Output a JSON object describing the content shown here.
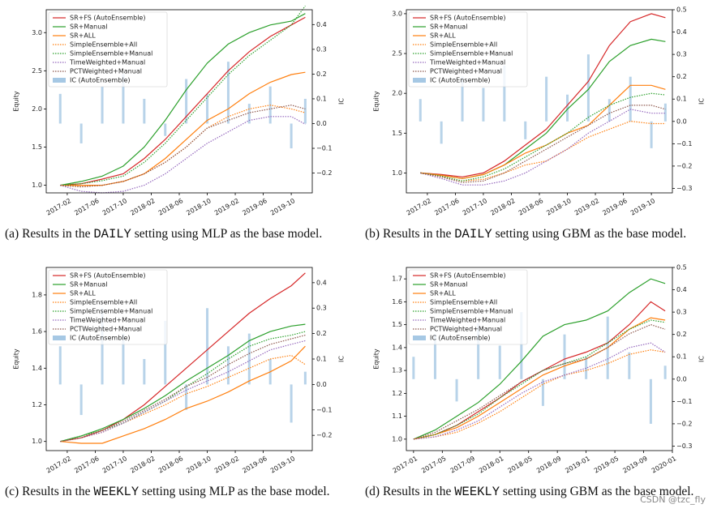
{
  "watermark": "CSDN @tzc_fly",
  "chart_data": [
    {
      "type": "line",
      "legend": "upper left",
      "ylabel": "Equity",
      "y2label": "IC",
      "caption": {
        "prefix": "(a) Results in the ",
        "setting": "DAILY",
        "suffix": " setting using MLP as the base model."
      },
      "x": [
        "2017-01",
        "2017-04",
        "2017-07",
        "2017-10",
        "2018-01",
        "2018-04",
        "2018-07",
        "2018-10",
        "2019-01",
        "2019-04",
        "2019-07",
        "2019-10",
        "2019-12"
      ],
      "xlim": [
        "2016-11",
        "2020-01"
      ],
      "xticks": [
        "2017-02",
        "2017-06",
        "2017-10",
        "2018-02",
        "2018-06",
        "2018-10",
        "2019-02",
        "2019-06",
        "2019-10"
      ],
      "ylim": [
        0.9,
        3.3
      ],
      "yticks": [
        {
          "value": 1,
          "label": "1.0"
        },
        1.5,
        {
          "value": 2,
          "label": "2.0"
        },
        2.5,
        {
          "value": 3,
          "label": "3.0"
        }
      ],
      "y2lim": [
        -0.28,
        0.46
      ],
      "y2ticks": [
        {
          "value": -0.2,
          "label": "−0.2"
        },
        {
          "value": -0.1,
          "label": "−0.1"
        },
        {
          "value": 0,
          "label": "0.0"
        },
        0.1,
        0.2,
        0.3,
        0.4
      ],
      "series": [
        {
          "name": "SR+FS (AutoEnsemble)",
          "color": "#d62728",
          "style": "solid",
          "values": [
            1.0,
            1.02,
            1.08,
            1.15,
            1.35,
            1.6,
            1.9,
            2.2,
            2.5,
            2.75,
            2.95,
            3.1,
            3.2
          ]
        },
        {
          "name": "SR+Manual",
          "color": "#2ca02c",
          "style": "solid",
          "values": [
            1.0,
            1.05,
            1.12,
            1.25,
            1.5,
            1.85,
            2.25,
            2.6,
            2.85,
            3.0,
            3.1,
            3.15,
            3.25
          ]
        },
        {
          "name": "SR+ALL",
          "color": "#ff7f0e",
          "style": "solid",
          "values": [
            1.0,
            1.0,
            1.0,
            1.05,
            1.15,
            1.35,
            1.6,
            1.85,
            2.0,
            2.2,
            2.35,
            2.45,
            2.48
          ]
        },
        {
          "name": "SimpleEnsemble+All",
          "color": "#ff7f0e",
          "style": "dotted",
          "values": [
            1.0,
            0.98,
            1.0,
            1.05,
            1.15,
            1.3,
            1.5,
            1.75,
            1.9,
            2.0,
            2.05,
            2.0,
            1.95
          ]
        },
        {
          "name": "SimpleEnsemble+Manual",
          "color": "#2ca02c",
          "style": "dotted",
          "values": [
            1.0,
            1.02,
            1.06,
            1.12,
            1.3,
            1.55,
            1.85,
            2.15,
            2.45,
            2.7,
            2.9,
            3.1,
            3.35
          ]
        },
        {
          "name": "TimeWeighted+Manual",
          "color": "#9467bd",
          "style": "dotted",
          "values": [
            1.0,
            0.92,
            0.9,
            0.92,
            1.0,
            1.15,
            1.35,
            1.55,
            1.7,
            1.85,
            1.9,
            1.9,
            1.8
          ]
        },
        {
          "name": "PCTWeighted+Manual",
          "color": "#8c564b",
          "style": "dotted",
          "values": [
            1.0,
            0.98,
            1.0,
            1.05,
            1.15,
            1.3,
            1.5,
            1.75,
            1.85,
            1.95,
            2.0,
            2.05,
            2.0
          ]
        },
        {
          "name": "IC (AutoEnsemble)",
          "color": "#a6c8e4",
          "type": "bar",
          "axis": "y2",
          "values": [
            0.12,
            -0.08,
            0.15,
            0.2,
            0.1,
            -0.05,
            0.18,
            0.12,
            0.25,
            0.08,
            0.15,
            -0.1,
            0.1
          ]
        }
      ]
    },
    {
      "type": "line",
      "legend": "upper left",
      "ylabel": "Equity",
      "y2label": "IC",
      "caption": {
        "prefix": "(b) Results in the ",
        "setting": "DAILY",
        "suffix": " setting using GBM as the base model."
      },
      "x": [
        "2017-01",
        "2017-04",
        "2017-07",
        "2017-10",
        "2018-01",
        "2018-04",
        "2018-07",
        "2018-10",
        "2019-01",
        "2019-04",
        "2019-07",
        "2019-10",
        "2019-12"
      ],
      "xlim": [
        "2016-11",
        "2020-01"
      ],
      "xticks": [
        "2017-02",
        "2017-06",
        "2017-10",
        "2018-02",
        "2018-06",
        "2018-10",
        "2019-02",
        "2019-06",
        "2019-10"
      ],
      "ylim": [
        0.75,
        3.05
      ],
      "yticks": [
        {
          "value": 1,
          "label": "1.0"
        },
        1.5,
        {
          "value": 2,
          "label": "2.0"
        },
        2.5,
        {
          "value": 3,
          "label": "3.0"
        }
      ],
      "y2lim": [
        -0.32,
        0.5
      ],
      "y2ticks": [
        {
          "value": -0.3,
          "label": "−0.3"
        },
        {
          "value": -0.2,
          "label": "−0.2"
        },
        {
          "value": -0.1,
          "label": "−0.1"
        },
        {
          "value": 0,
          "label": "0.0"
        },
        0.1,
        0.2,
        0.3,
        0.4,
        0.5
      ],
      "series": [
        {
          "name": "SR+FS (AutoEnsemble)",
          "color": "#d62728",
          "style": "solid",
          "values": [
            1.0,
            0.98,
            0.95,
            1.0,
            1.15,
            1.35,
            1.55,
            1.85,
            2.15,
            2.6,
            2.9,
            3.0,
            2.95
          ]
        },
        {
          "name": "SR+Manual",
          "color": "#2ca02c",
          "style": "solid",
          "values": [
            1.0,
            0.97,
            0.93,
            0.98,
            1.1,
            1.3,
            1.5,
            1.8,
            2.05,
            2.4,
            2.6,
            2.68,
            2.65
          ]
        },
        {
          "name": "SR+ALL",
          "color": "#ff7f0e",
          "style": "solid",
          "values": [
            1.0,
            0.97,
            0.93,
            0.98,
            1.1,
            1.25,
            1.35,
            1.5,
            1.6,
            1.85,
            2.1,
            2.1,
            2.05
          ]
        },
        {
          "name": "SimpleEnsemble+All",
          "color": "#ff7f0e",
          "style": "dotted",
          "values": [
            1.0,
            0.95,
            0.9,
            0.92,
            1.0,
            1.1,
            1.15,
            1.3,
            1.45,
            1.55,
            1.65,
            1.62,
            1.62
          ]
        },
        {
          "name": "SimpleEnsemble+Manual",
          "color": "#2ca02c",
          "style": "dotted",
          "values": [
            1.0,
            0.96,
            0.9,
            0.95,
            1.05,
            1.2,
            1.35,
            1.5,
            1.7,
            1.85,
            1.95,
            2.0,
            1.98
          ]
        },
        {
          "name": "TimeWeighted+Manual",
          "color": "#9467bd",
          "style": "dotted",
          "values": [
            1.0,
            0.93,
            0.85,
            0.85,
            0.9,
            1.0,
            1.15,
            1.3,
            1.5,
            1.65,
            1.8,
            1.75,
            1.75
          ]
        },
        {
          "name": "PCTWeighted+Manual",
          "color": "#8c564b",
          "style": "dotted",
          "values": [
            1.0,
            0.95,
            0.88,
            0.9,
            1.0,
            1.15,
            1.3,
            1.45,
            1.6,
            1.75,
            1.85,
            1.85,
            1.8
          ]
        },
        {
          "name": "IC (AutoEnsemble)",
          "color": "#a6c8e4",
          "type": "bar",
          "axis": "y2",
          "values": [
            0.1,
            -0.1,
            0.2,
            0.15,
            0.25,
            -0.08,
            0.2,
            0.12,
            0.3,
            0.1,
            0.2,
            -0.12,
            0.08
          ]
        }
      ]
    },
    {
      "type": "line",
      "legend": "upper left",
      "ylabel": "Equity",
      "y2label": "IC",
      "caption": {
        "prefix": "(c) Results in the ",
        "setting": "WEEKLY",
        "suffix": " setting using MLP as the base model."
      },
      "x": [
        "2017-01",
        "2017-04",
        "2017-07",
        "2017-10",
        "2018-01",
        "2018-04",
        "2018-07",
        "2018-10",
        "2019-01",
        "2019-04",
        "2019-07",
        "2019-10",
        "2019-12"
      ],
      "xlim": [
        "2016-11",
        "2020-01"
      ],
      "xticks": [
        "2017-02",
        "2017-06",
        "2017-10",
        "2018-02",
        "2018-06",
        "2018-10",
        "2019-02",
        "2019-06",
        "2019-10"
      ],
      "ylim": [
        0.95,
        1.95
      ],
      "yticks": [
        {
          "value": 1,
          "label": "1.0"
        },
        1.2,
        1.4,
        1.6,
        1.8
      ],
      "y2lim": [
        -0.26,
        0.46
      ],
      "y2ticks": [
        {
          "value": -0.2,
          "label": "−0.2"
        },
        {
          "value": -0.1,
          "label": "−0.1"
        },
        {
          "value": 0,
          "label": "0.0"
        },
        0.1,
        0.2,
        0.3,
        0.4
      ],
      "series": [
        {
          "name": "SR+FS (AutoEnsemble)",
          "color": "#d62728",
          "style": "solid",
          "values": [
            1.0,
            1.02,
            1.06,
            1.12,
            1.2,
            1.3,
            1.4,
            1.5,
            1.6,
            1.7,
            1.78,
            1.85,
            1.92
          ]
        },
        {
          "name": "SR+Manual",
          "color": "#2ca02c",
          "style": "solid",
          "values": [
            1.0,
            1.03,
            1.07,
            1.12,
            1.18,
            1.25,
            1.33,
            1.4,
            1.47,
            1.55,
            1.6,
            1.63,
            1.64
          ]
        },
        {
          "name": "SR+ALL",
          "color": "#ff7f0e",
          "style": "solid",
          "values": [
            1.0,
            0.99,
            0.99,
            1.03,
            1.07,
            1.12,
            1.18,
            1.22,
            1.27,
            1.33,
            1.38,
            1.44,
            1.52
          ]
        },
        {
          "name": "SimpleEnsemble+All",
          "color": "#ff7f0e",
          "style": "dotted",
          "values": [
            1.0,
            1.02,
            1.05,
            1.1,
            1.15,
            1.2,
            1.26,
            1.3,
            1.35,
            1.4,
            1.45,
            1.47,
            1.42
          ]
        },
        {
          "name": "SimpleEnsemble+Manual",
          "color": "#2ca02c",
          "style": "dotted",
          "values": [
            1.0,
            1.03,
            1.06,
            1.1,
            1.16,
            1.22,
            1.3,
            1.37,
            1.45,
            1.52,
            1.56,
            1.58,
            1.6
          ]
        },
        {
          "name": "TimeWeighted+Manual",
          "color": "#9467bd",
          "style": "dotted",
          "values": [
            1.0,
            1.02,
            1.05,
            1.1,
            1.16,
            1.22,
            1.28,
            1.33,
            1.38,
            1.44,
            1.5,
            1.53,
            1.55
          ]
        },
        {
          "name": "PCTWeighted+Manual",
          "color": "#8c564b",
          "style": "dotted",
          "values": [
            1.0,
            1.02,
            1.06,
            1.11,
            1.17,
            1.23,
            1.3,
            1.35,
            1.42,
            1.48,
            1.53,
            1.56,
            1.58
          ]
        },
        {
          "name": "IC (AutoEnsemble)",
          "color": "#a6c8e4",
          "type": "bar",
          "axis": "y2",
          "values": [
            0.15,
            -0.12,
            0.3,
            0.2,
            0.1,
            0.25,
            -0.1,
            0.3,
            0.15,
            0.2,
            0.1,
            -0.15,
            0.05
          ]
        }
      ]
    },
    {
      "type": "line",
      "legend": "upper left",
      "ylabel": "Equity",
      "y2label": "IC",
      "caption": {
        "prefix": "(d) Results in the ",
        "setting": "WEEKLY",
        "suffix": " setting using GBM as the base model."
      },
      "x": [
        "2017-01",
        "2017-04",
        "2017-07",
        "2017-10",
        "2018-01",
        "2018-04",
        "2018-07",
        "2018-10",
        "2019-01",
        "2019-04",
        "2019-07",
        "2019-10",
        "2019-12"
      ],
      "xlim": [
        "2016-12",
        "2020-01"
      ],
      "xticks": [
        "2017-01",
        "2017-05",
        "2017-09",
        "2018-01",
        "2018-05",
        "2018-09",
        "2019-01",
        "2019-05",
        "2019-09",
        "2020-01"
      ],
      "ylim": [
        0.95,
        1.75
      ],
      "yticks": [
        {
          "value": 1,
          "label": "1.0"
        },
        1.1,
        1.2,
        1.3,
        1.4,
        1.5,
        1.6,
        1.7
      ],
      "y2lim": [
        -0.32,
        0.5
      ],
      "y2ticks": [
        {
          "value": -0.3,
          "label": "−0.3"
        },
        {
          "value": -0.2,
          "label": "−0.2"
        },
        {
          "value": -0.1,
          "label": "−0.1"
        },
        {
          "value": 0,
          "label": "0.0"
        },
        0.1,
        0.2,
        0.3,
        0.4,
        0.5
      ],
      "series": [
        {
          "name": "SR+FS (AutoEnsemble)",
          "color": "#d62728",
          "style": "solid",
          "values": [
            1.0,
            1.02,
            1.06,
            1.12,
            1.18,
            1.25,
            1.3,
            1.35,
            1.38,
            1.42,
            1.5,
            1.6,
            1.56
          ]
        },
        {
          "name": "SR+Manual",
          "color": "#2ca02c",
          "style": "solid",
          "values": [
            1.0,
            1.04,
            1.1,
            1.16,
            1.24,
            1.34,
            1.45,
            1.5,
            1.52,
            1.56,
            1.64,
            1.7,
            1.68
          ]
        },
        {
          "name": "SR+ALL",
          "color": "#ff7f0e",
          "style": "solid",
          "values": [
            1.0,
            1.02,
            1.05,
            1.1,
            1.16,
            1.22,
            1.28,
            1.32,
            1.35,
            1.4,
            1.48,
            1.53,
            1.52
          ]
        },
        {
          "name": "SimpleEnsemble+All",
          "color": "#ff7f0e",
          "style": "dotted",
          "values": [
            1.0,
            1.01,
            1.03,
            1.07,
            1.12,
            1.18,
            1.24,
            1.28,
            1.3,
            1.33,
            1.37,
            1.39,
            1.38
          ]
        },
        {
          "name": "SimpleEnsemble+Manual",
          "color": "#2ca02c",
          "style": "dotted",
          "values": [
            1.0,
            1.02,
            1.06,
            1.11,
            1.18,
            1.24,
            1.3,
            1.33,
            1.36,
            1.42,
            1.48,
            1.52,
            1.51
          ]
        },
        {
          "name": "TimeWeighted+Manual",
          "color": "#9467bd",
          "style": "dotted",
          "values": [
            1.0,
            1.01,
            1.04,
            1.08,
            1.14,
            1.2,
            1.25,
            1.28,
            1.31,
            1.35,
            1.4,
            1.42,
            1.38
          ]
        },
        {
          "name": "PCTWeighted+Manual",
          "color": "#8c564b",
          "style": "dotted",
          "values": [
            1.0,
            1.03,
            1.08,
            1.13,
            1.19,
            1.25,
            1.3,
            1.33,
            1.35,
            1.4,
            1.46,
            1.5,
            1.48
          ]
        },
        {
          "name": "IC (AutoEnsemble)",
          "color": "#a6c8e4",
          "type": "bar",
          "axis": "y2",
          "values": [
            0.1,
            0.2,
            -0.1,
            0.25,
            0.15,
            0.3,
            -0.12,
            0.2,
            0.1,
            0.28,
            0.12,
            -0.2,
            0.06
          ]
        }
      ]
    }
  ]
}
